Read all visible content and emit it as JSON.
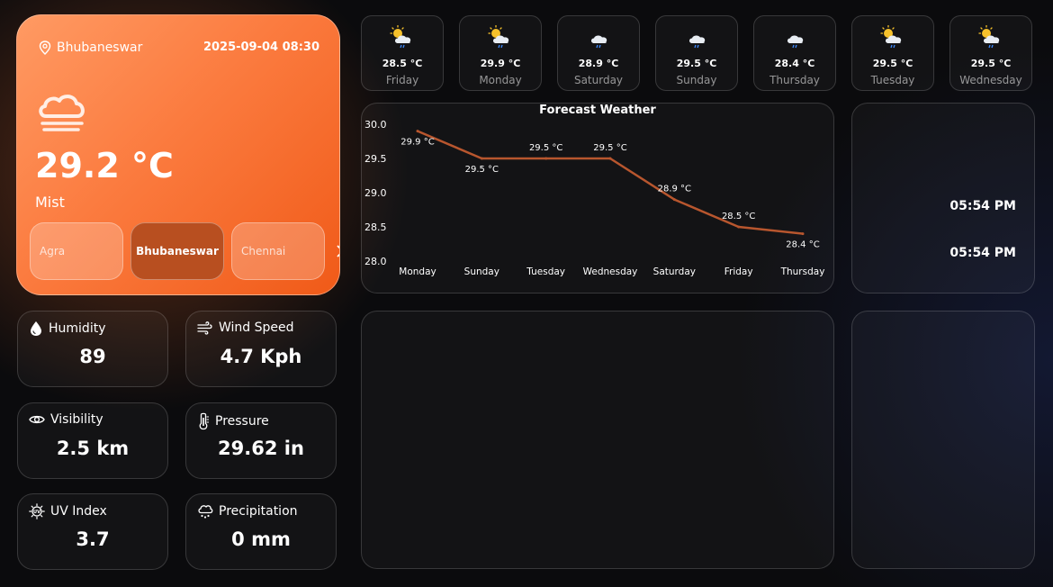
{
  "current": {
    "location": "Bhubaneswar",
    "datetime": "2025-09-04 08:30",
    "temperature": "29.2 °C",
    "condition": "Mist",
    "icon": "mist-cloud-icon"
  },
  "cities": [
    {
      "label": "Agra",
      "active": false
    },
    {
      "label": "Bhubaneswar",
      "active": true
    },
    {
      "label": "Chennai",
      "active": false
    }
  ],
  "stats": {
    "humidity": {
      "label": "Humidity",
      "value": "89",
      "icon": "droplet-icon"
    },
    "wind": {
      "label": "Wind Speed",
      "value": "4.7 Kph",
      "icon": "wind-icon"
    },
    "visibility": {
      "label": "Visibility",
      "value": "2.5 km",
      "icon": "eye-icon"
    },
    "pressure": {
      "label": "Pressure",
      "value": "29.62 in",
      "icon": "thermometer-icon"
    },
    "uv": {
      "label": "UV Index",
      "value": "3.7",
      "icon": "uv-sun-icon"
    },
    "precip": {
      "label": "Precipitation",
      "value": "0 mm",
      "icon": "rain-cloud-icon"
    }
  },
  "forecast": [
    {
      "temp": "28.5 °C",
      "day": "Friday",
      "icon": "sun-cloud-rain-icon"
    },
    {
      "temp": "29.9 °C",
      "day": "Monday",
      "icon": "sun-cloud-rain-icon"
    },
    {
      "temp": "28.9 °C",
      "day": "Saturday",
      "icon": "cloud-rain-icon"
    },
    {
      "temp": "29.5 °C",
      "day": "Sunday",
      "icon": "cloud-rain-icon"
    },
    {
      "temp": "28.4 °C",
      "day": "Thursday",
      "icon": "cloud-rain-icon"
    },
    {
      "temp": "29.5 °C",
      "day": "Tuesday",
      "icon": "sun-cloud-rain-icon"
    },
    {
      "temp": "29.5 °C",
      "day": "Wednesday",
      "icon": "sun-cloud-rain-icon"
    }
  ],
  "times": {
    "sunrise": "05:54 PM",
    "sunset": "05:54 PM"
  },
  "chart_data": {
    "type": "line",
    "title": "Forecast Weather",
    "categories": [
      "Monday",
      "Sunday",
      "Tuesday",
      "Wednesday",
      "Saturday",
      "Friday",
      "Thursday"
    ],
    "values": [
      29.9,
      29.5,
      29.5,
      29.5,
      28.9,
      28.5,
      28.4
    ],
    "data_labels": [
      "29.9 °C",
      "29.5 °C",
      "29.5 °C",
      "29.5 °C",
      "28.9 °C",
      "28.5 °C",
      "28.4 °C"
    ],
    "yticks": [
      "30.0",
      "29.5",
      "29.0",
      "28.5",
      "28.0"
    ],
    "ylim": [
      28.0,
      30.0
    ],
    "line_color": "#b8562e",
    "grid": false
  }
}
